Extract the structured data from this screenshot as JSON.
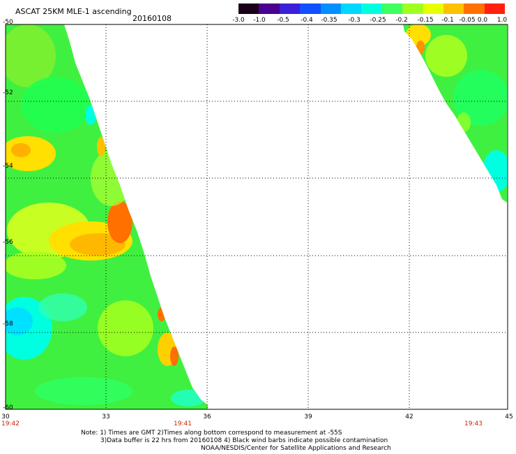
{
  "header": {
    "title": "ASCAT 25KM MLE-1 ascending",
    "date": "20160108"
  },
  "colorbar": {
    "labels": [
      "-3.0",
      "-1.0",
      "-0.5",
      "-0.4",
      "-0.35",
      "-0.3",
      "-0.25",
      "-0.2",
      "-0.15",
      "-0.1",
      "-0.05",
      "0.0",
      "1.0"
    ],
    "colors": [
      "#1a0018",
      "#4b0090",
      "#3a20d8",
      "#1050ff",
      "#0090ff",
      "#00d8ff",
      "#00ffe0",
      "#40ff60",
      "#a0ff20",
      "#e8ff00",
      "#ffc000",
      "#ff7000",
      "#ff2010"
    ]
  },
  "map": {
    "lon_labels": [
      "30",
      "33",
      "36",
      "39",
      "42",
      "45"
    ],
    "lat_labels": [
      "-50",
      "-52",
      "-54",
      "-56",
      "-58",
      "-60"
    ],
    "lon_range": [
      30,
      45
    ],
    "lat_range": [
      -60,
      -50
    ],
    "gridlines": true,
    "swath_times": [
      "19:42",
      "19:41",
      "19:43"
    ]
  },
  "notes": {
    "line1": "Note: 1) Times are GMT 2)Times along bottom correspond to measurement at -55S",
    "line2": "3)Data buffer is 22 hrs from 20160108 4) Black wind barbs indicate possible contamination",
    "line3": "NOAA/NESDIS/Center for Satellite Applications and Research"
  }
}
